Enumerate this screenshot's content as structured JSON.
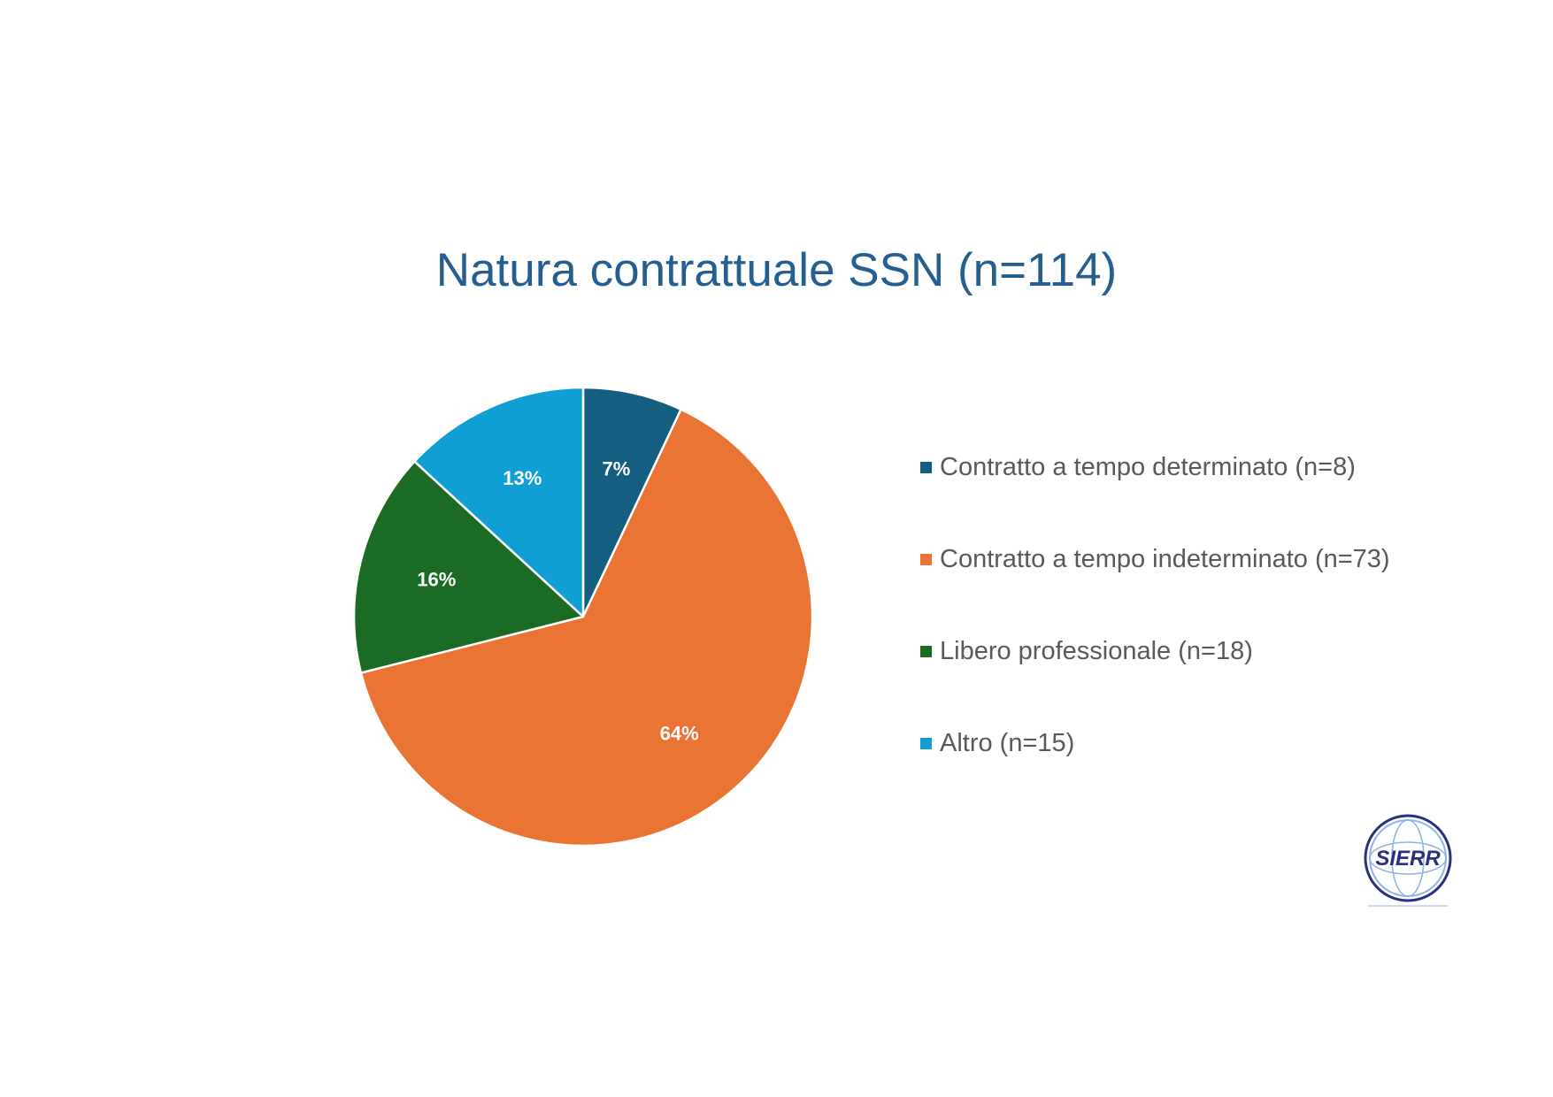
{
  "chart_data": {
    "type": "pie",
    "title": "Natura contrattuale SSN (n=114)",
    "slices": [
      {
        "label": "Contratto a tempo determinato (n=8)",
        "count": 8,
        "percent": 7,
        "data_label": "7%",
        "color": "#165e80"
      },
      {
        "label": "Contratto a tempo indeterminato (n=73)",
        "count": 73,
        "percent": 64,
        "data_label": "64%",
        "color": "#e97433"
      },
      {
        "label": "Libero professionale (n=18)",
        "count": 18,
        "percent": 16,
        "data_label": "16%",
        "color": "#1c6b25"
      },
      {
        "label": "Altro (n=15)",
        "count": 15,
        "percent": 13,
        "data_label": "13%",
        "color": "#0f9fd5"
      }
    ],
    "legend_position": "right"
  },
  "logo": {
    "text": "SIERR",
    "color": "#2b2f7e",
    "ring_color": "#8fb4e3"
  }
}
